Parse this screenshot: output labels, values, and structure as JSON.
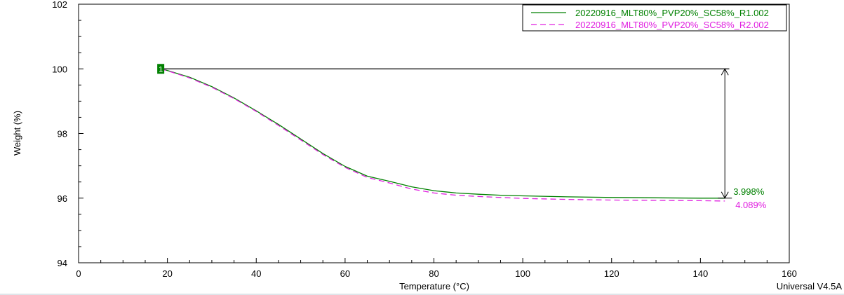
{
  "chart_data": {
    "type": "line",
    "title": "",
    "xlabel": "Temperature (°C)",
    "ylabel": "Weight (%)",
    "xlim": [
      0,
      160
    ],
    "ylim": [
      94,
      102
    ],
    "x_ticks": [
      0,
      20,
      40,
      60,
      80,
      100,
      120,
      140,
      160
    ],
    "y_ticks": [
      94,
      96,
      98,
      100,
      102
    ],
    "grid": false,
    "legend_position": "top-right",
    "series": [
      {
        "name": "20220916_MLT80%_PVP20%_SC58%_R1.002",
        "color": "#008000",
        "dash": "solid",
        "x": [
          18.5,
          20,
          25,
          30,
          35,
          40,
          45,
          50,
          55,
          60,
          65,
          70,
          75,
          80,
          85,
          90,
          95,
          100,
          110,
          120,
          130,
          140,
          145.5
        ],
        "y": [
          100.0,
          99.95,
          99.74,
          99.45,
          99.1,
          98.7,
          98.28,
          97.83,
          97.38,
          96.98,
          96.68,
          96.52,
          96.35,
          96.23,
          96.16,
          96.12,
          96.09,
          96.07,
          96.04,
          96.02,
          96.01,
          96.0,
          96.0
        ]
      },
      {
        "name": "20220916_MLT80%_PVP20%_SC58%_R2.002",
        "color": "#e020e0",
        "dash": "dashed",
        "x": [
          18.5,
          20,
          25,
          30,
          35,
          40,
          45,
          50,
          55,
          60,
          65,
          70,
          75,
          80,
          85,
          90,
          95,
          100,
          110,
          120,
          130,
          140,
          145.5
        ],
        "y": [
          100.0,
          99.94,
          99.72,
          99.43,
          99.08,
          98.68,
          98.25,
          97.8,
          97.35,
          96.95,
          96.64,
          96.47,
          96.28,
          96.16,
          96.09,
          96.05,
          96.02,
          95.99,
          95.96,
          95.94,
          95.93,
          95.92,
          95.91
        ]
      }
    ],
    "annotations": {
      "step_marker": {
        "label": "1",
        "x": 18.5,
        "y": 100.0,
        "color": "#008000"
      },
      "reference_line": {
        "x_start": 18.5,
        "x_end": 146.5,
        "y": 100.0
      },
      "arrow_x": 145.5,
      "loss_labels": [
        {
          "text": "3.998%",
          "color": "#008000",
          "y": 96.0
        },
        {
          "text": "4.089%",
          "color": "#e020e0",
          "y": 95.91
        }
      ]
    },
    "footer": "Universal V4.5A"
  }
}
